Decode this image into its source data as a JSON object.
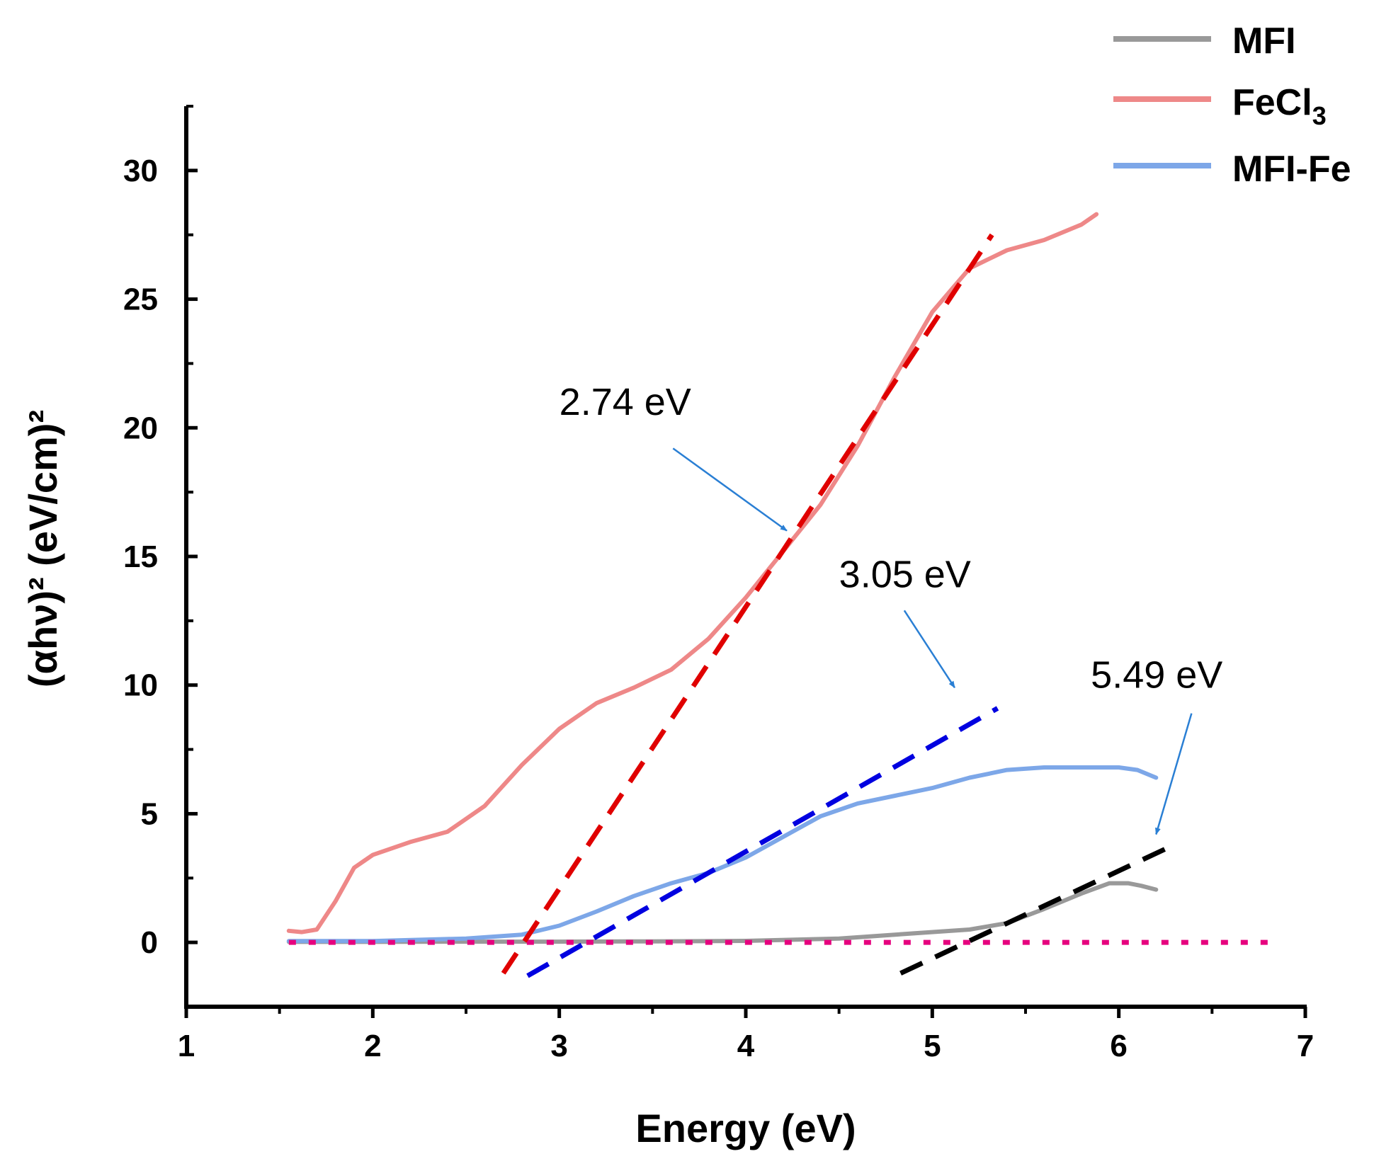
{
  "chart_data": {
    "type": "line",
    "xlabel": "Energy (eV)",
    "ylabel": "(αhν)² (eV/cm)²",
    "xlim": [
      1,
      7
    ],
    "ylim": [
      -2.5,
      32.5
    ],
    "x_ticks": [
      1,
      2,
      3,
      4,
      5,
      6,
      7
    ],
    "y_ticks": [
      0,
      5,
      10,
      15,
      20,
      25,
      30
    ],
    "colors": {
      "axis": "#000000",
      "mfi": "#999999",
      "fecl3": "#ee8888",
      "mfi_fe": "#7da7e8",
      "baseline": "#e6007e",
      "fit_fecl3": "#e00000",
      "fit_mfi_fe": "#0000e0",
      "fit_mfi": "#000000",
      "arrow": "#2a7fd4"
    },
    "series": [
      {
        "name": "MFI",
        "x": [
          1.55,
          2.0,
          2.5,
          3.0,
          3.5,
          4.0,
          4.5,
          4.9,
          5.2,
          5.4,
          5.6,
          5.8,
          5.95,
          6.05,
          6.12,
          6.2
        ],
        "y": [
          0.02,
          0.02,
          0.03,
          0.03,
          0.04,
          0.06,
          0.15,
          0.35,
          0.5,
          0.75,
          1.3,
          1.9,
          2.3,
          2.3,
          2.2,
          2.05
        ]
      },
      {
        "name": "FeCl3",
        "x": [
          1.55,
          1.62,
          1.7,
          1.8,
          1.9,
          2.0,
          2.2,
          2.4,
          2.6,
          2.8,
          3.0,
          3.2,
          3.4,
          3.6,
          3.8,
          4.0,
          4.2,
          4.4,
          4.6,
          4.8,
          5.0,
          5.2,
          5.4,
          5.6,
          5.8,
          5.88
        ],
        "y": [
          0.45,
          0.4,
          0.5,
          1.6,
          2.9,
          3.4,
          3.9,
          4.3,
          5.3,
          6.9,
          8.3,
          9.3,
          9.9,
          10.6,
          11.8,
          13.4,
          15.2,
          17.0,
          19.3,
          22.0,
          24.5,
          26.2,
          26.9,
          27.3,
          27.9,
          28.3
        ]
      },
      {
        "name": "MFI-Fe",
        "x": [
          1.55,
          2.0,
          2.5,
          2.8,
          3.0,
          3.2,
          3.4,
          3.6,
          3.8,
          4.0,
          4.2,
          4.4,
          4.6,
          4.8,
          5.0,
          5.2,
          5.4,
          5.6,
          5.8,
          6.0,
          6.1,
          6.2
        ],
        "y": [
          0.05,
          0.05,
          0.15,
          0.3,
          0.65,
          1.2,
          1.8,
          2.3,
          2.7,
          3.3,
          4.1,
          4.9,
          5.4,
          5.7,
          6.0,
          6.4,
          6.7,
          6.8,
          6.8,
          6.8,
          6.7,
          6.4
        ]
      }
    ],
    "baseline": {
      "y": 0,
      "x_range": [
        1.55,
        6.85
      ]
    },
    "fit_lines": [
      {
        "series": "FeCl3",
        "x": [
          2.7,
          5.32
        ],
        "y": [
          -1.2,
          27.5
        ]
      },
      {
        "series": "MFI-Fe",
        "x": [
          2.83,
          5.35
        ],
        "y": [
          -1.3,
          9.1
        ]
      },
      {
        "series": "MFI",
        "x": [
          4.83,
          6.27
        ],
        "y": [
          -1.2,
          3.7
        ]
      }
    ],
    "legend": {
      "position": "top-right",
      "entries": [
        "MFI",
        "FeCl",
        "MFI-Fe"
      ],
      "fecl3_subscript": "3"
    },
    "annotations": [
      {
        "text": "2.74 eV",
        "text_at": [
          3.0,
          20.5
        ],
        "arrow_from": [
          3.61,
          19.2
        ],
        "arrow_to": [
          4.22,
          16.0
        ]
      },
      {
        "text": "3.05 eV",
        "text_at": [
          4.5,
          13.8
        ],
        "arrow_from": [
          4.85,
          12.9
        ],
        "arrow_to": [
          5.12,
          9.9
        ]
      },
      {
        "text": "5.49 eV",
        "text_at": [
          5.85,
          9.9
        ],
        "arrow_from": [
          6.39,
          8.9
        ],
        "arrow_to": [
          6.2,
          4.2
        ]
      }
    ]
  }
}
